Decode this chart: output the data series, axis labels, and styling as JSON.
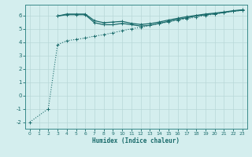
{
  "background_color": "#d4eeee",
  "grid_color": "#b8d8d8",
  "line_color": "#1a6b6b",
  "xlabel": "Humidex (Indice chaleur)",
  "xlim": [
    -0.5,
    23.5
  ],
  "ylim": [
    -2.5,
    6.8
  ],
  "xticks": [
    0,
    1,
    2,
    3,
    4,
    5,
    6,
    7,
    8,
    9,
    10,
    11,
    12,
    13,
    14,
    15,
    16,
    17,
    18,
    19,
    20,
    21,
    22,
    23
  ],
  "yticks": [
    -2,
    -1,
    0,
    1,
    2,
    3,
    4,
    5,
    6
  ],
  "series": [
    {
      "x": [
        0,
        2,
        3,
        4,
        5,
        6,
        7,
        8,
        9,
        10,
        11,
        12,
        13,
        14,
        15,
        16,
        17,
        18,
        19,
        20,
        21,
        22,
        23
      ],
      "y": [
        -2.0,
        -1.0,
        3.8,
        4.1,
        4.2,
        4.3,
        4.45,
        4.55,
        4.7,
        4.85,
        5.0,
        5.1,
        5.25,
        5.4,
        5.5,
        5.65,
        5.75,
        5.87,
        6.0,
        6.1,
        6.2,
        6.3,
        6.38
      ],
      "linestyle": "dotted",
      "linewidth": 0.8
    },
    {
      "x": [
        3,
        4,
        5,
        6,
        7,
        8,
        9,
        10,
        11,
        12,
        13,
        14,
        15,
        16,
        17,
        18,
        19,
        20,
        21,
        22,
        23
      ],
      "y": [
        5.95,
        6.05,
        6.05,
        6.05,
        5.45,
        5.3,
        5.3,
        5.4,
        5.3,
        5.2,
        5.25,
        5.4,
        5.55,
        5.7,
        5.82,
        5.95,
        6.05,
        6.12,
        6.22,
        6.32,
        6.38
      ],
      "linestyle": "solid",
      "linewidth": 0.9
    },
    {
      "x": [
        3,
        4,
        5,
        6,
        7,
        8,
        9,
        10,
        11,
        12,
        13,
        14,
        15,
        16,
        17,
        18,
        19,
        20,
        21,
        22,
        23
      ],
      "y": [
        5.95,
        6.1,
        6.1,
        6.1,
        5.6,
        5.45,
        5.5,
        5.55,
        5.4,
        5.32,
        5.38,
        5.5,
        5.65,
        5.78,
        5.9,
        6.0,
        6.1,
        6.17,
        6.25,
        6.35,
        6.42
      ],
      "linestyle": "solid",
      "linewidth": 0.9
    }
  ]
}
